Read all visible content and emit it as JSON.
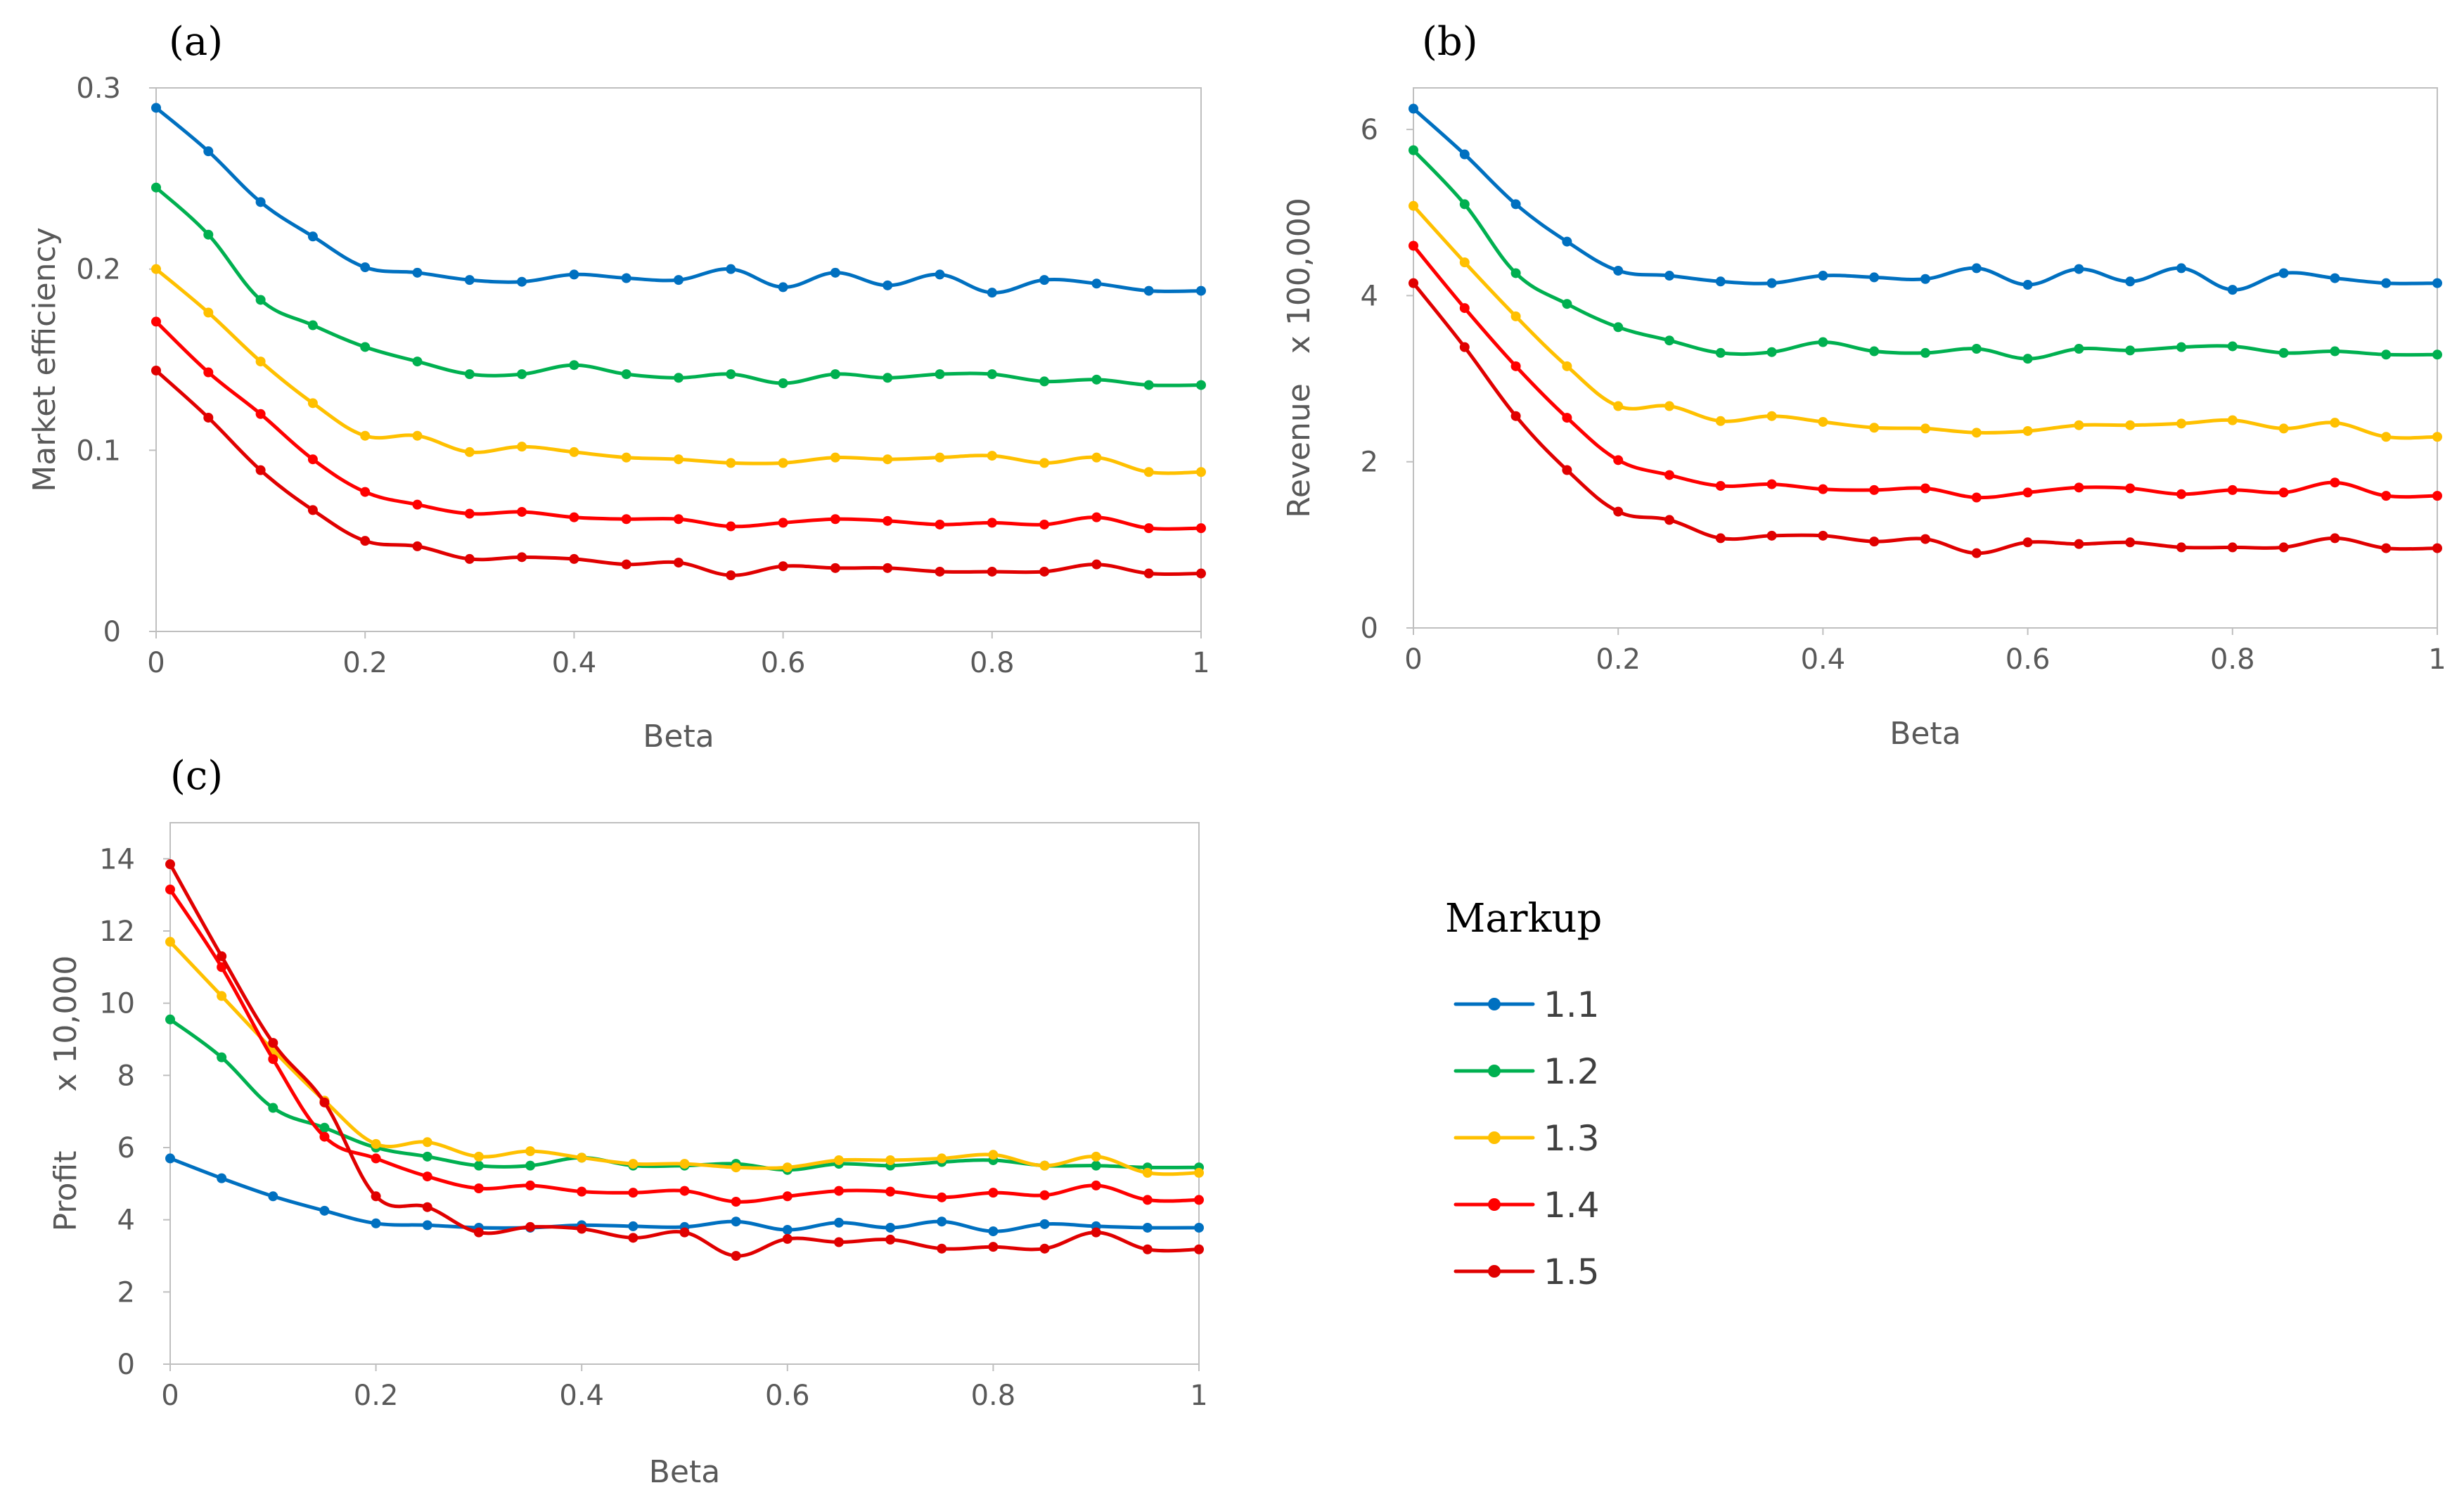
{
  "chart_data": [
    {
      "type": "line",
      "panel_label": "(a)",
      "title": "",
      "xlabel": "Beta",
      "ylabel": "Market efficiency",
      "xlim": [
        0,
        1
      ],
      "ylim": [
        0,
        0.3
      ],
      "x_ticks": [
        "0",
        "0.2",
        "0.4",
        "0.6",
        "0.8",
        "1"
      ],
      "y_ticks": [
        "0",
        "0.1",
        "0.2",
        "0.3"
      ],
      "x": [
        0,
        0.05,
        0.1,
        0.15,
        0.2,
        0.25,
        0.3,
        0.35,
        0.4,
        0.45,
        0.5,
        0.55,
        0.6,
        0.65,
        0.7,
        0.75,
        0.8,
        0.85,
        0.9,
        0.95,
        1
      ],
      "series": [
        {
          "name": "1.1",
          "values": [
            0.289,
            0.265,
            0.237,
            0.218,
            0.201,
            0.198,
            0.194,
            0.193,
            0.197,
            0.195,
            0.194,
            0.2,
            0.19,
            0.198,
            0.191,
            0.197,
            0.187,
            0.194,
            0.192,
            0.188,
            0.188
          ]
        },
        {
          "name": "1.2",
          "values": [
            0.245,
            0.219,
            0.183,
            0.169,
            0.157,
            0.149,
            0.142,
            0.142,
            0.147,
            0.142,
            0.14,
            0.142,
            0.137,
            0.142,
            0.14,
            0.142,
            0.142,
            0.138,
            0.139,
            0.136,
            0.136
          ]
        },
        {
          "name": "1.3",
          "values": [
            0.2,
            0.176,
            0.149,
            0.126,
            0.108,
            0.108,
            0.099,
            0.102,
            0.099,
            0.096,
            0.095,
            0.093,
            0.093,
            0.096,
            0.095,
            0.096,
            0.097,
            0.093,
            0.096,
            0.088,
            0.088
          ]
        },
        {
          "name": "1.4",
          "values": [
            0.171,
            0.143,
            0.12,
            0.095,
            0.077,
            0.07,
            0.065,
            0.066,
            0.063,
            0.062,
            0.062,
            0.058,
            0.06,
            0.062,
            0.061,
            0.059,
            0.06,
            0.059,
            0.063,
            0.057,
            0.057
          ]
        },
        {
          "name": "1.5",
          "values": [
            0.144,
            0.118,
            0.089,
            0.067,
            0.05,
            0.047,
            0.04,
            0.041,
            0.04,
            0.037,
            0.038,
            0.031,
            0.036,
            0.035,
            0.035,
            0.033,
            0.033,
            0.033,
            0.037,
            0.032,
            0.032
          ]
        }
      ]
    },
    {
      "type": "line",
      "panel_label": "(b)",
      "title": "",
      "xlabel": "Beta",
      "ylabel": "Revenue   x 100,000",
      "xlim": [
        0,
        1
      ],
      "ylim": [
        0,
        6.5
      ],
      "x_ticks": [
        "0",
        "0.2",
        "0.4",
        "0.6",
        "0.8",
        "1"
      ],
      "y_ticks": [
        "0",
        "2",
        "4",
        "6"
      ],
      "x": [
        0,
        0.05,
        0.1,
        0.15,
        0.2,
        0.25,
        0.3,
        0.35,
        0.4,
        0.45,
        0.5,
        0.55,
        0.6,
        0.65,
        0.7,
        0.75,
        0.8,
        0.85,
        0.9,
        0.95,
        1
      ],
      "series": [
        {
          "name": "1.1",
          "values": [
            6.25,
            5.7,
            5.1,
            4.65,
            4.3,
            4.24,
            4.17,
            4.15,
            4.24,
            4.22,
            4.2,
            4.33,
            4.13,
            4.32,
            4.17,
            4.33,
            4.07,
            4.27,
            4.21,
            4.15,
            4.15
          ]
        },
        {
          "name": "1.2",
          "values": [
            5.75,
            5.1,
            4.27,
            3.9,
            3.62,
            3.46,
            3.31,
            3.32,
            3.44,
            3.33,
            3.31,
            3.36,
            3.24,
            3.36,
            3.34,
            3.38,
            3.39,
            3.31,
            3.33,
            3.29,
            3.29
          ]
        },
        {
          "name": "1.3",
          "values": [
            5.08,
            4.4,
            3.75,
            3.15,
            2.67,
            2.67,
            2.49,
            2.55,
            2.48,
            2.41,
            2.4,
            2.35,
            2.37,
            2.44,
            2.44,
            2.46,
            2.5,
            2.4,
            2.47,
            2.3,
            2.3
          ]
        },
        {
          "name": "1.4",
          "values": [
            4.6,
            3.85,
            3.15,
            2.53,
            2.02,
            1.84,
            1.71,
            1.73,
            1.67,
            1.66,
            1.68,
            1.57,
            1.63,
            1.69,
            1.68,
            1.61,
            1.66,
            1.63,
            1.75,
            1.59,
            1.59
          ]
        },
        {
          "name": "1.5",
          "values": [
            4.15,
            3.38,
            2.55,
            1.9,
            1.4,
            1.3,
            1.08,
            1.11,
            1.11,
            1.04,
            1.07,
            0.9,
            1.03,
            1.01,
            1.03,
            0.97,
            0.97,
            0.97,
            1.08,
            0.96,
            0.96
          ]
        }
      ]
    },
    {
      "type": "line",
      "panel_label": "(c)",
      "title": "",
      "xlabel": "Beta",
      "ylabel": "Profit      x 10,000",
      "xlim": [
        0,
        1
      ],
      "ylim": [
        0,
        15
      ],
      "x_ticks": [
        "0",
        "0.2",
        "0.4",
        "0.6",
        "0.8",
        "1"
      ],
      "y_ticks": [
        "0",
        "2",
        "4",
        "6",
        "8",
        "10",
        "12",
        "14"
      ],
      "x": [
        0,
        0.05,
        0.1,
        0.15,
        0.2,
        0.25,
        0.3,
        0.35,
        0.4,
        0.45,
        0.5,
        0.55,
        0.6,
        0.65,
        0.7,
        0.75,
        0.8,
        0.85,
        0.9,
        0.95,
        1
      ],
      "series": [
        {
          "name": "1.1",
          "values": [
            5.7,
            5.15,
            4.65,
            4.25,
            3.9,
            3.85,
            3.78,
            3.78,
            3.85,
            3.82,
            3.8,
            3.95,
            3.72,
            3.92,
            3.78,
            3.95,
            3.68,
            3.88,
            3.82,
            3.78,
            3.78
          ]
        },
        {
          "name": "1.2",
          "values": [
            9.55,
            8.5,
            7.1,
            6.55,
            6.0,
            5.75,
            5.5,
            5.5,
            5.72,
            5.5,
            5.5,
            5.55,
            5.38,
            5.55,
            5.5,
            5.6,
            5.65,
            5.5,
            5.5,
            5.45,
            5.45
          ]
        },
        {
          "name": "1.3",
          "values": [
            11.7,
            10.2,
            8.7,
            7.3,
            6.1,
            6.15,
            5.75,
            5.9,
            5.72,
            5.55,
            5.55,
            5.45,
            5.45,
            5.65,
            5.65,
            5.7,
            5.8,
            5.5,
            5.75,
            5.3,
            5.3
          ]
        },
        {
          "name": "1.4",
          "values": [
            13.15,
            11.0,
            8.45,
            6.3,
            5.7,
            5.2,
            4.87,
            4.95,
            4.78,
            4.75,
            4.8,
            4.5,
            4.65,
            4.8,
            4.78,
            4.62,
            4.75,
            4.68,
            4.95,
            4.55,
            4.55
          ]
        },
        {
          "name": "1.5",
          "values": [
            13.85,
            11.3,
            8.9,
            7.25,
            4.65,
            4.35,
            3.65,
            3.8,
            3.75,
            3.5,
            3.65,
            3.0,
            3.47,
            3.38,
            3.45,
            3.2,
            3.25,
            3.2,
            3.65,
            3.18,
            3.18
          ]
        }
      ]
    }
  ],
  "legend": {
    "title": "Markup",
    "entries": [
      "1.1",
      "1.2",
      "1.3",
      "1.4",
      "1.5"
    ]
  },
  "colors": {
    "series": [
      "#0070C0",
      "#00B050",
      "#FFC000",
      "#FF0000",
      "#E00000"
    ],
    "axis": "#bfbfbf",
    "text": "#595959"
  }
}
